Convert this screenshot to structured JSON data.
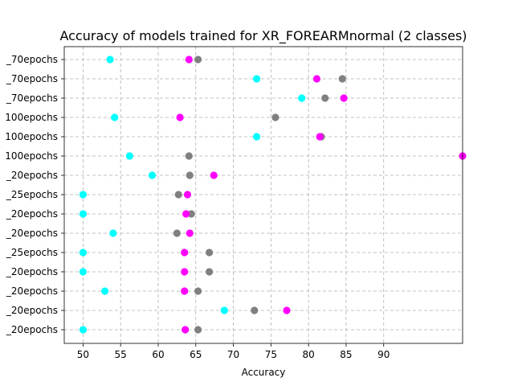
{
  "chart_data": {
    "type": "scatter",
    "title": "Accuracy of models trained for XR_FOREARMnormal (2 classes)",
    "xlabel": "Accuracy",
    "ylabel": "",
    "xlim": [
      47.5,
      100.5
    ],
    "xticks": [
      50,
      55,
      60,
      65,
      70,
      75,
      80,
      85,
      90
    ],
    "grid": true,
    "categories": [
      "_70epochs",
      "_70epochs",
      "_70epochs",
      "100epochs",
      "100epochs",
      "100epochs",
      "_20epochs",
      "_25epochs",
      "_20epochs",
      "_20epochs",
      "_25epochs",
      "_20epochs",
      "_20epochs",
      "_20epochs",
      "_20epochs"
    ],
    "series": [
      {
        "color": "#808080",
        "values": [
          65.3,
          84.5,
          82.2,
          75.6,
          81.7,
          64.1,
          64.2,
          62.7,
          64.4,
          62.5,
          66.8,
          66.8,
          65.3,
          72.8,
          65.3
        ]
      },
      {
        "color": "#ff00ff",
        "values": [
          64.1,
          81.1,
          84.7,
          62.9,
          81.5,
          100.5,
          67.4,
          63.9,
          63.7,
          64.2,
          63.5,
          63.5,
          63.5,
          77.1,
          63.6
        ]
      },
      {
        "color": "#00ffff",
        "values": [
          53.6,
          73.1,
          79.1,
          54.2,
          73.1,
          56.2,
          59.2,
          50.0,
          50.0,
          54.0,
          50.0,
          50.0,
          52.9,
          68.8,
          50.0
        ]
      }
    ]
  }
}
